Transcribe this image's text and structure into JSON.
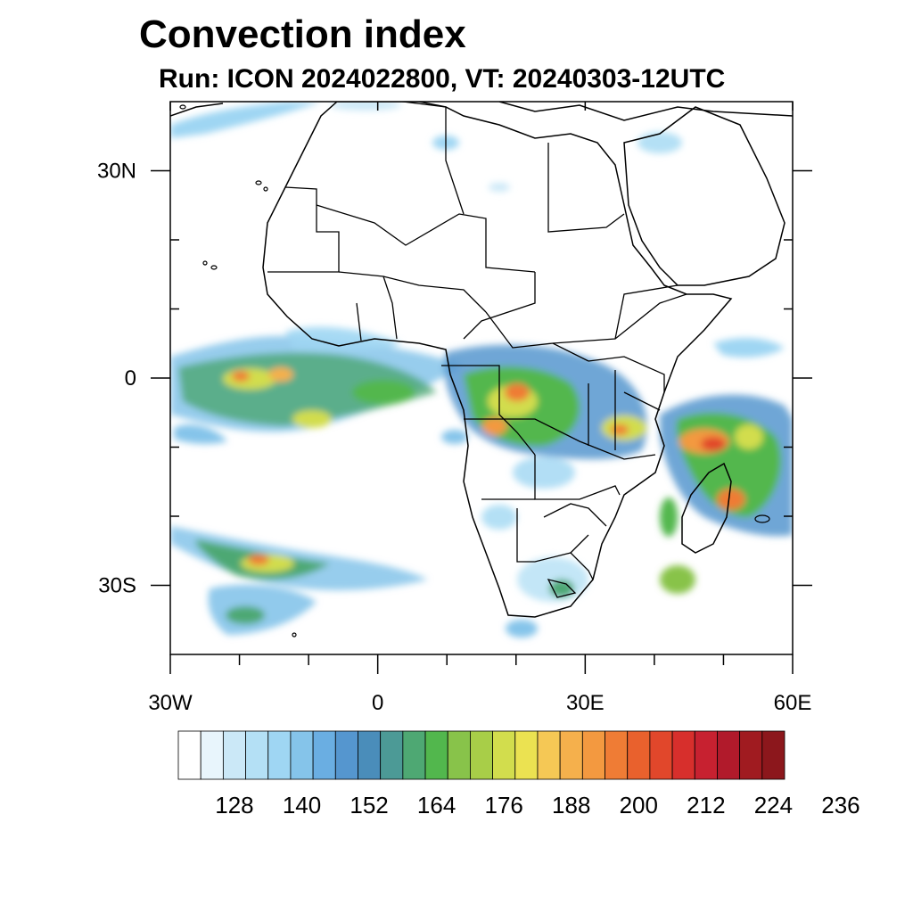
{
  "title": "Convection index",
  "subtitle": "Run: ICON 2024022800,  VT: 20240303-12UTC",
  "map": {
    "lon_range": [
      -30,
      60
    ],
    "lat_range": [
      -40,
      40
    ],
    "lat_ticks": [
      {
        "value": 30,
        "label": "30N"
      },
      {
        "value": 0,
        "label": "0"
      },
      {
        "value": -30,
        "label": "30S"
      }
    ],
    "lon_ticks": [
      {
        "value": -30,
        "label": "30W"
      },
      {
        "value": 0,
        "label": "0"
      },
      {
        "value": 30,
        "label": "30E"
      },
      {
        "value": 60,
        "label": "60E"
      }
    ],
    "minor_lon_ticks": [
      -20,
      -10,
      10,
      20,
      40,
      50
    ],
    "minor_lat_ticks": [
      20,
      10,
      -10,
      -20
    ]
  },
  "colorbar": {
    "colors": [
      "#ffffff",
      "#e8f5fc",
      "#cbe8f7",
      "#b4e0f5",
      "#9fd6f3",
      "#85c4ea",
      "#6aaee2",
      "#5596cf",
      "#4a8dba",
      "#4c9a96",
      "#4ea873",
      "#52b74d",
      "#88c34a",
      "#a8ce48",
      "#d2dd4d",
      "#ebe251",
      "#f5c855",
      "#f5b04c",
      "#f39940",
      "#ef7c35",
      "#e9612d",
      "#e1472b",
      "#d72f2c",
      "#c72130",
      "#b11a2b",
      "#a01b20",
      "#8c171c"
    ],
    "labels": [
      "128",
      "140",
      "152",
      "164",
      "176",
      "188",
      "200",
      "212",
      "224",
      "236"
    ],
    "label_box_index": [
      3,
      6,
      9,
      12,
      15,
      18,
      21,
      24,
      27,
      30
    ]
  }
}
